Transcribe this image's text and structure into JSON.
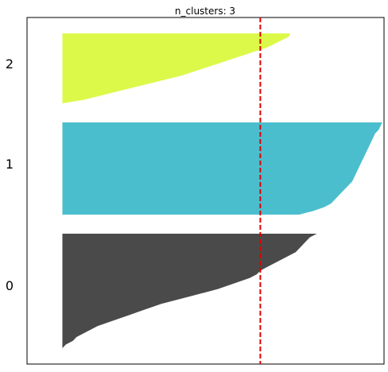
{
  "chart_data": {
    "type": "area",
    "title": "n_clusters: 3",
    "xlabel": "",
    "ylabel": "",
    "grid": false,
    "legend": "none",
    "y_tick_labels": [
      "0",
      "1",
      "2"
    ],
    "xlim": [
      -0.1,
      0.91
    ],
    "reference_line": {
      "value": 0.56,
      "color": "#e00000",
      "style": "dashed"
    },
    "clusters": [
      {
        "label": "0",
        "color": "#4a4a4a",
        "silhouette_values": [
          0.72,
          0.7,
          0.69,
          0.68,
          0.67,
          0.66,
          0.64,
          0.62,
          0.6,
          0.58,
          0.56,
          0.55,
          0.53,
          0.5,
          0.47,
          0.44,
          0.4,
          0.36,
          0.32,
          0.28,
          0.25,
          0.22,
          0.19,
          0.16,
          0.13,
          0.1,
          0.08,
          0.06,
          0.04,
          0.03,
          0.01,
          0.0
        ]
      },
      {
        "label": "1",
        "color": "#4bbecd",
        "silhouette_values": [
          0.905,
          0.9,
          0.895,
          0.885,
          0.88,
          0.875,
          0.87,
          0.865,
          0.86,
          0.855,
          0.85,
          0.845,
          0.84,
          0.835,
          0.83,
          0.825,
          0.82,
          0.81,
          0.8,
          0.79,
          0.78,
          0.77,
          0.76,
          0.74,
          0.71,
          0.67
        ]
      },
      {
        "label": "2",
        "color": "#dcf94a",
        "silhouette_values": [
          0.645,
          0.64,
          0.62,
          0.6,
          0.58,
          0.55,
          0.52,
          0.49,
          0.46,
          0.43,
          0.4,
          0.37,
          0.34,
          0.3,
          0.26,
          0.22,
          0.18,
          0.14,
          0.1,
          0.06,
          0.0
        ]
      }
    ]
  }
}
